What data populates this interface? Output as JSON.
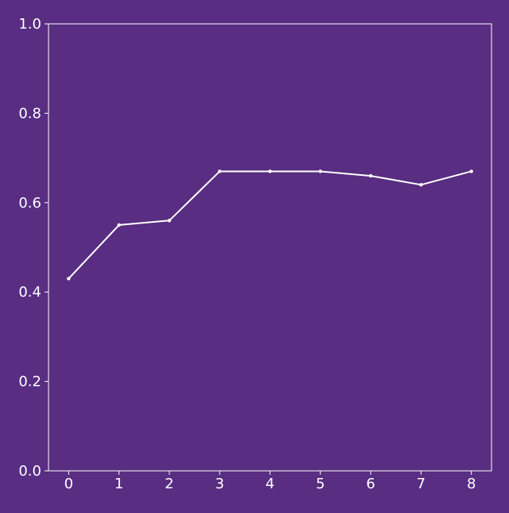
{
  "colors": {
    "background": "#582d82",
    "foreground": "#ffffff",
    "series": "#ffffff"
  },
  "chart_data": {
    "type": "line",
    "title": "",
    "xlabel": "",
    "ylabel": "",
    "x": [
      0,
      1,
      2,
      3,
      4,
      5,
      6,
      7,
      8
    ],
    "series": [
      {
        "values": [
          0.43,
          0.55,
          0.56,
          0.67,
          0.67,
          0.67,
          0.66,
          0.64,
          0.67
        ]
      }
    ],
    "xlim": [
      -0.4,
      8.4
    ],
    "ylim": [
      0.0,
      1.0
    ],
    "x_ticks": [
      0,
      1,
      2,
      3,
      4,
      5,
      6,
      7,
      8
    ],
    "x_tick_labels": [
      "0",
      "1",
      "2",
      "3",
      "4",
      "5",
      "6",
      "7",
      "8"
    ],
    "y_ticks": [
      0.0,
      0.2,
      0.4,
      0.6,
      0.8,
      1.0
    ],
    "y_tick_labels": [
      "0.0",
      "0.2",
      "0.4",
      "0.6",
      "0.8",
      "1.0"
    ],
    "grid": false,
    "legend": "none",
    "markers": true
  }
}
